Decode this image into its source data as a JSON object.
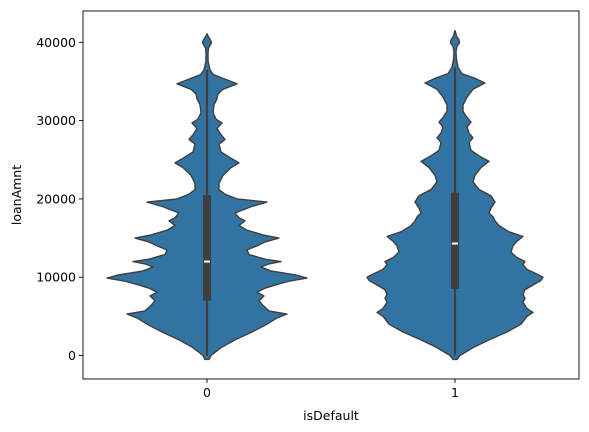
{
  "chart_data": {
    "type": "violin",
    "title": "",
    "xlabel": "isDefault",
    "ylabel": "loanAmnt",
    "categories": [
      "0",
      "1"
    ],
    "ylim": [
      -3000,
      44000
    ],
    "yticks": [
      0,
      10000,
      20000,
      30000,
      40000
    ],
    "yticklabels": [
      "0",
      "10000",
      "20000",
      "30000",
      "40000"
    ],
    "grid": false,
    "color": "#3274a1",
    "edge_color": "#3f3f3f",
    "violins": [
      {
        "category": "0",
        "min": 0,
        "max": 41000,
        "q1": 7000,
        "median": 12000,
        "q3": 20500,
        "whisker_low": 0,
        "whisker_high": 36500,
        "profile": [
          [
            -500,
            2
          ],
          [
            0,
            4
          ],
          [
            1000,
            14
          ],
          [
            2000,
            28
          ],
          [
            3000,
            45
          ],
          [
            4000,
            60
          ],
          [
            4800,
            70
          ],
          [
            5300,
            80
          ],
          [
            5700,
            62
          ],
          [
            6400,
            56
          ],
          [
            7000,
            52
          ],
          [
            7600,
            57
          ],
          [
            8100,
            50
          ],
          [
            8600,
            58
          ],
          [
            9000,
            68
          ],
          [
            9500,
            82
          ],
          [
            9900,
            100
          ],
          [
            10300,
            88
          ],
          [
            10800,
            64
          ],
          [
            11300,
            54
          ],
          [
            11700,
            62
          ],
          [
            12000,
            74
          ],
          [
            12300,
            58
          ],
          [
            12900,
            42
          ],
          [
            13500,
            40
          ],
          [
            14000,
            50
          ],
          [
            14500,
            58
          ],
          [
            15000,
            72
          ],
          [
            15400,
            56
          ],
          [
            16000,
            40
          ],
          [
            16600,
            32
          ],
          [
            17200,
            38
          ],
          [
            17600,
            32
          ],
          [
            18200,
            28
          ],
          [
            19000,
            44
          ],
          [
            19600,
            60
          ],
          [
            20000,
            30
          ],
          [
            20600,
            18
          ],
          [
            21200,
            12
          ],
          [
            22000,
            12
          ],
          [
            23000,
            16
          ],
          [
            24000,
            24
          ],
          [
            24600,
            32
          ],
          [
            25200,
            24
          ],
          [
            26000,
            14
          ],
          [
            27000,
            12
          ],
          [
            27600,
            18
          ],
          [
            28200,
            14
          ],
          [
            29000,
            10
          ],
          [
            29700,
            15
          ],
          [
            30200,
            9
          ],
          [
            31000,
            6
          ],
          [
            32000,
            7
          ],
          [
            32800,
            10
          ],
          [
            33400,
            11
          ],
          [
            34000,
            16
          ],
          [
            34700,
            30
          ],
          [
            35300,
            18
          ],
          [
            35900,
            6
          ],
          [
            36500,
            3
          ],
          [
            37500,
            1.2
          ],
          [
            38500,
            1
          ],
          [
            39300,
            1.5
          ],
          [
            39700,
            3.5
          ],
          [
            40000,
            4.5
          ],
          [
            40400,
            3
          ],
          [
            40800,
            1
          ],
          [
            41100,
            0
          ]
        ]
      },
      {
        "category": "1",
        "min": -500,
        "max": 41500,
        "q1": 8500,
        "median": 14300,
        "q3": 20800,
        "whisker_low": 0,
        "whisker_high": 36800,
        "profile": [
          [
            -500,
            2
          ],
          [
            0,
            5
          ],
          [
            1000,
            18
          ],
          [
            2000,
            34
          ],
          [
            3000,
            52
          ],
          [
            4000,
            66
          ],
          [
            5000,
            72
          ],
          [
            5500,
            78
          ],
          [
            6000,
            72
          ],
          [
            6800,
            68
          ],
          [
            7300,
            70
          ],
          [
            7800,
            68
          ],
          [
            8400,
            70
          ],
          [
            9000,
            78
          ],
          [
            9600,
            86
          ],
          [
            10000,
            88
          ],
          [
            10400,
            82
          ],
          [
            11000,
            72
          ],
          [
            11600,
            68
          ],
          [
            12000,
            70
          ],
          [
            12500,
            62
          ],
          [
            13200,
            56
          ],
          [
            14000,
            58
          ],
          [
            14600,
            62
          ],
          [
            15200,
            68
          ],
          [
            15800,
            54
          ],
          [
            16600,
            44
          ],
          [
            17200,
            40
          ],
          [
            17700,
            38
          ],
          [
            18200,
            34
          ],
          [
            18800,
            36
          ],
          [
            19600,
            40
          ],
          [
            20400,
            36
          ],
          [
            21200,
            24
          ],
          [
            22200,
            18
          ],
          [
            23000,
            20
          ],
          [
            24000,
            26
          ],
          [
            24800,
            34
          ],
          [
            25500,
            24
          ],
          [
            26200,
            16
          ],
          [
            27200,
            14
          ],
          [
            27800,
            18
          ],
          [
            28400,
            14
          ],
          [
            29200,
            12
          ],
          [
            29800,
            16
          ],
          [
            30400,
            12
          ],
          [
            31200,
            8
          ],
          [
            32000,
            8
          ],
          [
            33000,
            12
          ],
          [
            34000,
            18
          ],
          [
            34800,
            30
          ],
          [
            35400,
            20
          ],
          [
            36000,
            7
          ],
          [
            36800,
            3
          ],
          [
            37800,
            1.5
          ],
          [
            38800,
            1
          ],
          [
            39500,
            2
          ],
          [
            39900,
            4.5
          ],
          [
            40300,
            4
          ],
          [
            40800,
            1.5
          ],
          [
            41300,
            0.5
          ],
          [
            41500,
            0
          ]
        ]
      }
    ]
  }
}
